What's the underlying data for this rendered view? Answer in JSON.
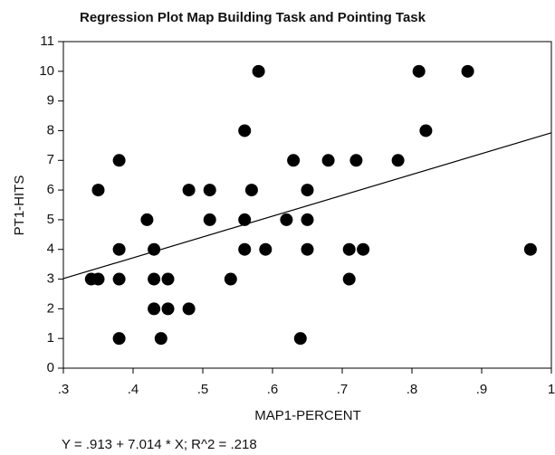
{
  "chart_data": {
    "type": "scatter",
    "title": "Regression Plot Map Building Task and Pointing Task",
    "x_label": "MAP1-PERCENT",
    "y_label": "PT1-HITS",
    "annotation": "Y = .913 + 7.014 * X; R^2 = .218",
    "regression": {
      "intercept": 0.913,
      "slope": 7.014
    },
    "xlim": [
      0.3,
      1
    ],
    "ylim": [
      0,
      11
    ],
    "xticks": [
      {
        "value": 0.3,
        "label": ".3"
      },
      {
        "value": 0.4,
        "label": ".4"
      },
      {
        "value": 0.5,
        "label": ".5"
      },
      {
        "value": 0.6,
        "label": ".6"
      },
      {
        "value": 0.7,
        "label": ".7"
      },
      {
        "value": 0.8,
        "label": ".8"
      },
      {
        "value": 0.9,
        "label": ".9"
      },
      1
    ],
    "yticks": [
      0,
      1,
      2,
      3,
      4,
      5,
      6,
      7,
      8,
      9,
      10,
      11
    ],
    "color": "#000000",
    "x": [
      0.34,
      0.35,
      0.35,
      0.38,
      0.38,
      0.38,
      0.38,
      0.42,
      0.43,
      0.43,
      0.43,
      0.44,
      0.45,
      0.45,
      0.48,
      0.48,
      0.51,
      0.51,
      0.54,
      0.56,
      0.56,
      0.56,
      0.57,
      0.58,
      0.59,
      0.62,
      0.63,
      0.64,
      0.65,
      0.65,
      0.65,
      0.68,
      0.71,
      0.71,
      0.72,
      0.73,
      0.78,
      0.81,
      0.82,
      0.88,
      0.97
    ],
    "values": [
      3,
      3,
      6,
      1,
      3,
      4,
      7,
      5,
      4,
      3,
      2,
      1,
      3,
      2,
      6,
      2,
      6,
      5,
      3,
      8,
      5,
      4,
      6,
      10,
      4,
      5,
      7,
      1,
      6,
      5,
      4,
      7,
      3,
      4,
      7,
      4,
      7,
      10,
      8,
      10,
      4
    ]
  }
}
